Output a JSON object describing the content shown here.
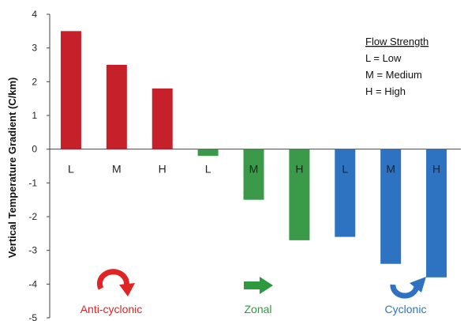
{
  "chart_data": {
    "type": "bar",
    "ylabel": "Vertical Temperature Gradient (C/km)",
    "ylim": [
      -5,
      4
    ],
    "yticks": [
      4,
      3,
      2,
      1,
      0,
      -1,
      -2,
      -3,
      -4,
      -5
    ],
    "categories": [
      "L",
      "M",
      "H",
      "L",
      "M",
      "H",
      "L",
      "M",
      "H"
    ],
    "values": [
      3.5,
      2.5,
      1.8,
      -0.2,
      -1.5,
      -2.7,
      -2.6,
      -3.4,
      -3.8
    ],
    "bar_colors": [
      "#c6202a",
      "#c6202a",
      "#c6202a",
      "#3a9a4a",
      "#3a9a4a",
      "#3a9a4a",
      "#2e72c2",
      "#2e72c2",
      "#2e72c2"
    ],
    "groups": [
      {
        "name": "Anti-cyclonic",
        "color": "#e02424",
        "icon": "curved-arrow-clockwise-icon"
      },
      {
        "name": "Zonal",
        "color": "#2e9a40",
        "icon": "right-arrow-icon"
      },
      {
        "name": "Cyclonic",
        "color": "#2e72c2",
        "icon": "curved-arrow-counterclockwise-icon"
      }
    ],
    "legend": {
      "title": "Flow Strength",
      "lines": [
        "L = Low",
        "M = Medium",
        "H = High"
      ],
      "placement": "top-right"
    }
  }
}
